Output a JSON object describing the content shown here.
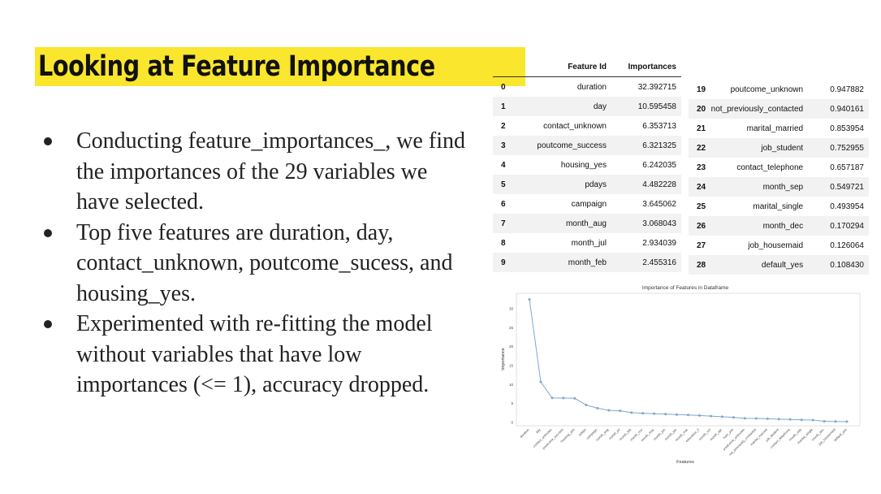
{
  "slide": {
    "title": "Looking at Feature Importance",
    "bullets": [
      "Conducting feature_importances_, we find the importances of the 29 variables we have selected.",
      "Top five features are duration, day, contact_unknown, poutcome_sucess, and housing_yes.",
      "Experimented with re-fitting the model without variables that have low importances (<= 1), accuracy dropped."
    ]
  },
  "table": {
    "headers": [
      "Feature Id",
      "Importances"
    ],
    "left_rows": [
      {
        "idx": "0",
        "name": "duration",
        "value": "32.392715"
      },
      {
        "idx": "1",
        "name": "day",
        "value": "10.595458"
      },
      {
        "idx": "2",
        "name": "contact_unknown",
        "value": "6.353713"
      },
      {
        "idx": "3",
        "name": "poutcome_success",
        "value": "6.321325"
      },
      {
        "idx": "4",
        "name": "housing_yes",
        "value": "6.242035"
      },
      {
        "idx": "5",
        "name": "pdays",
        "value": "4.482228"
      },
      {
        "idx": "6",
        "name": "campaign",
        "value": "3.645062"
      },
      {
        "idx": "7",
        "name": "month_aug",
        "value": "3.068043"
      },
      {
        "idx": "8",
        "name": "month_jul",
        "value": "2.934039"
      },
      {
        "idx": "9",
        "name": "month_feb",
        "value": "2.455316"
      }
    ],
    "right_rows": [
      {
        "idx": "19",
        "name": "poutcome_unknown",
        "value": "0.947882"
      },
      {
        "idx": "20",
        "name": "not_previously_contacted",
        "value": "0.940161"
      },
      {
        "idx": "21",
        "name": "marital_married",
        "value": "0.853954"
      },
      {
        "idx": "22",
        "name": "job_student",
        "value": "0.752955"
      },
      {
        "idx": "23",
        "name": "contact_telephone",
        "value": "0.657187"
      },
      {
        "idx": "24",
        "name": "month_sep",
        "value": "0.549721"
      },
      {
        "idx": "25",
        "name": "marital_single",
        "value": "0.493954"
      },
      {
        "idx": "26",
        "name": "month_dec",
        "value": "0.170294"
      },
      {
        "idx": "27",
        "name": "job_housemaid",
        "value": "0.126064"
      },
      {
        "idx": "28",
        "name": "default_yes",
        "value": "0.108430"
      }
    ]
  },
  "chart_data": {
    "type": "line",
    "title": "Importance of Features in Dataframe",
    "xlabel": "Features",
    "ylabel": "Importance",
    "ylim": [
      -1,
      34
    ],
    "yticks": [
      0,
      5,
      10,
      15,
      20,
      25,
      30
    ],
    "grid": true,
    "color": "#7fa6cf",
    "x": [
      "duration",
      "day",
      "contact_unknown",
      "poutcome_success",
      "housing_yes",
      "pdays",
      "campaign",
      "month_aug",
      "month_jul",
      "month_feb",
      "month_nov",
      "month_may",
      "month_jun",
      "month_jan",
      "month_mar",
      "education_2",
      "month_oct",
      "month_apr",
      "loan_yes",
      "poutcome_unknown",
      "not_previously_contacted",
      "marital_married",
      "job_student",
      "contact_telephone",
      "month_sep",
      "marital_single",
      "month_dec",
      "job_housemaid",
      "default_yes"
    ],
    "values": [
      32.392715,
      10.595458,
      6.353713,
      6.321325,
      6.242035,
      4.482228,
      3.645062,
      3.068043,
      2.934039,
      2.455316,
      2.3,
      2.2,
      2.1,
      1.95,
      1.85,
      1.7,
      1.55,
      1.4,
      1.2,
      0.947882,
      0.940161,
      0.853954,
      0.752955,
      0.657187,
      0.549721,
      0.493954,
      0.170294,
      0.126064,
      0.10843
    ]
  }
}
